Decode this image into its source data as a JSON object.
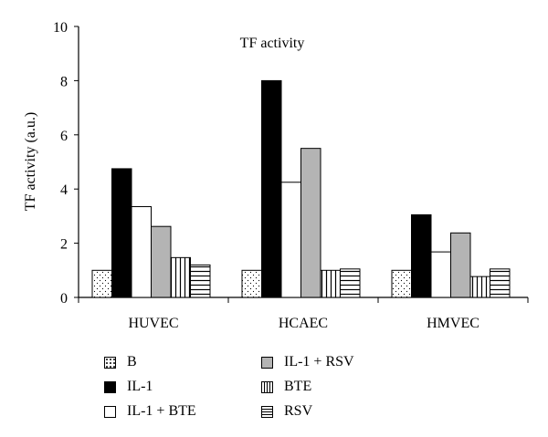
{
  "chart_data": {
    "type": "bar",
    "title": "TF activity",
    "ylabel": "TF activity (a.u.)",
    "xlabel": "",
    "ylim": [
      0,
      10
    ],
    "yticks": [
      0,
      2,
      4,
      6,
      8,
      10
    ],
    "categories": [
      "HUVEC",
      "HCAEC",
      "HMVEC"
    ],
    "series": [
      {
        "name": "B",
        "values": [
          1.0,
          1.0,
          1.0
        ],
        "pattern": "dots"
      },
      {
        "name": "IL-1",
        "values": [
          4.75,
          8.0,
          3.05
        ],
        "pattern": "solid-black"
      },
      {
        "name": "IL-1 + BTE",
        "values": [
          3.35,
          4.25,
          1.68
        ],
        "pattern": "white"
      },
      {
        "name": "IL-1 + RSV",
        "values": [
          2.62,
          5.5,
          2.38
        ],
        "pattern": "solid-gray"
      },
      {
        "name": "BTE",
        "values": [
          1.47,
          1.0,
          0.77
        ],
        "pattern": "vertical-lines"
      },
      {
        "name": "RSV",
        "values": [
          1.2,
          1.05,
          1.05
        ],
        "pattern": "horizontal-lines"
      }
    ],
    "legend_layout": "below",
    "grid": false,
    "colors": {
      "black": "#000000",
      "gray": "#b4b4b4",
      "white": "#ffffff"
    }
  }
}
